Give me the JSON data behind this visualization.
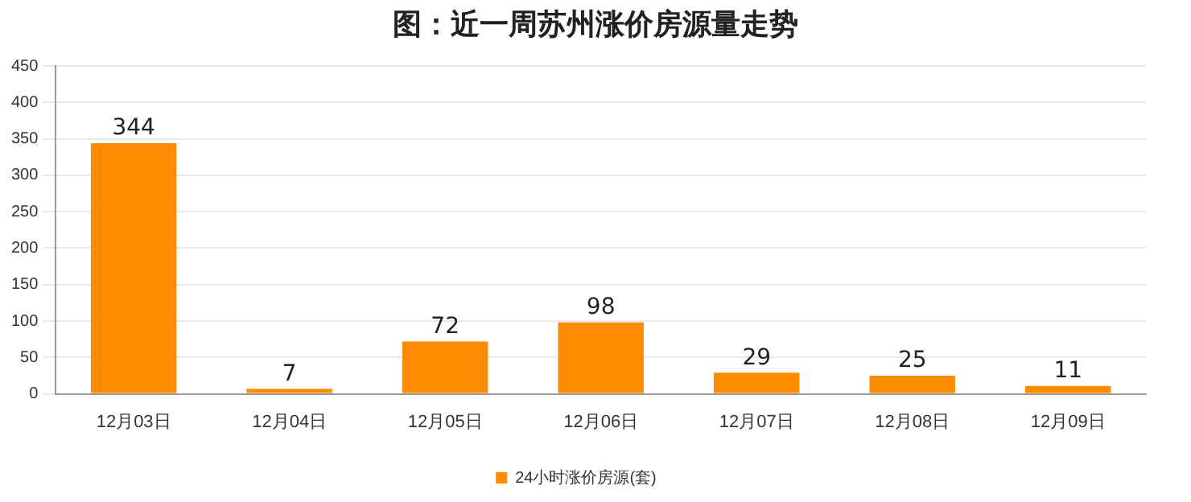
{
  "chart_data": {
    "type": "bar",
    "title": "图：近一周苏州涨价房源量走势",
    "categories": [
      "12月03日",
      "12月04日",
      "12月05日",
      "12月06日",
      "12月07日",
      "12月08日",
      "12月09日"
    ],
    "series": [
      {
        "name": "24小时涨价房源(套)",
        "color": "#ff8c00",
        "values": [
          344,
          7,
          72,
          98,
          29,
          25,
          11
        ]
      }
    ],
    "ylim": [
      0,
      450
    ],
    "yticks": [
      0,
      50,
      100,
      150,
      200,
      250,
      300,
      350,
      400,
      450
    ],
    "grid": "y",
    "legend": "bottom",
    "data_labels": true
  }
}
